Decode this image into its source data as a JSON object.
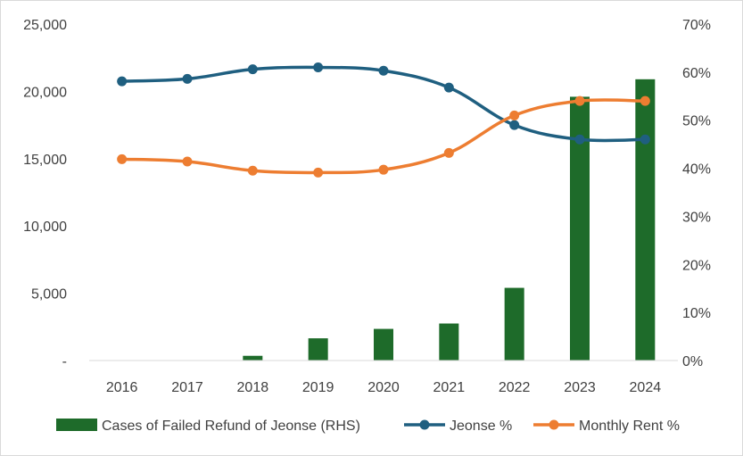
{
  "chart_data": {
    "type": "bar+line",
    "categories": [
      "2016",
      "2017",
      "2018",
      "2019",
      "2020",
      "2021",
      "2022",
      "2023",
      "2024"
    ],
    "series": [
      {
        "name": "Cases of Failed Refund of Jeonse (RHS)",
        "kind": "bar",
        "axis": "left",
        "color": "#1e6b2a",
        "values": [
          0,
          0,
          350,
          1650,
          2350,
          2750,
          5400,
          19600,
          20900
        ]
      },
      {
        "name": "Jeonse %",
        "kind": "line",
        "axis": "right",
        "color": "#1f5f80",
        "values": [
          58.1,
          58.6,
          60.6,
          61.0,
          60.3,
          56.8,
          49.0,
          46.0,
          46.0
        ]
      },
      {
        "name": "Monthly Rent %",
        "kind": "line",
        "axis": "right",
        "color": "#ed7d31",
        "values": [
          41.9,
          41.4,
          39.5,
          39.1,
          39.7,
          43.2,
          51.0,
          54.0,
          54.0
        ]
      }
    ],
    "y_left": {
      "ylim": [
        0,
        25000
      ],
      "tick_values": [
        0,
        5000,
        10000,
        15000,
        20000,
        25000
      ],
      "tick_labels": [
        "-",
        "5,000",
        "10,000",
        "15,000",
        "20,000",
        "25,000"
      ]
    },
    "y_right": {
      "ylim": [
        0,
        70
      ],
      "tick_values": [
        0,
        10,
        20,
        30,
        40,
        50,
        60,
        70
      ],
      "tick_labels": [
        "0%",
        "10%",
        "20%",
        "30%",
        "40%",
        "50%",
        "60%",
        "70%"
      ]
    },
    "grid": false,
    "legend_position": "bottom"
  }
}
